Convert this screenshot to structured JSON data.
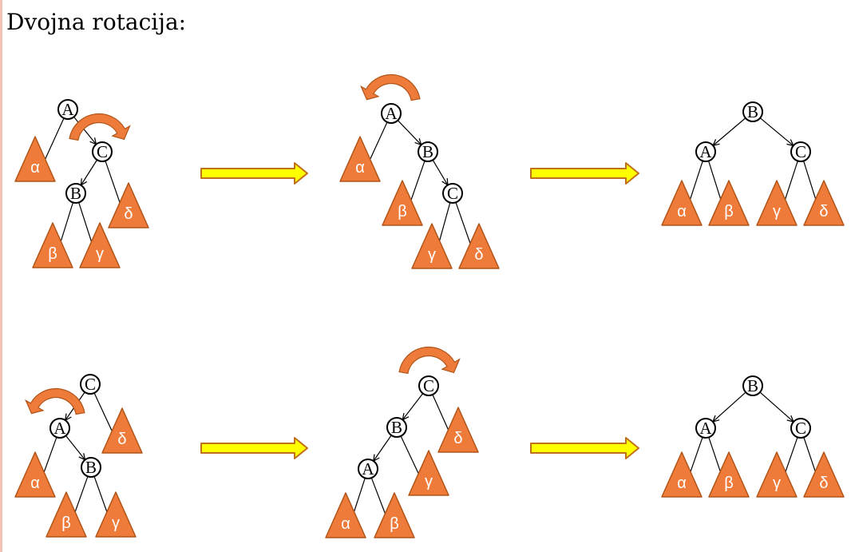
{
  "title": "Dvojna rotacija:",
  "colors": {
    "subtree_fill": "#ee7b3a",
    "subtree_stroke": "#b05418",
    "rotation_arrow": "#ee7b3a",
    "step_arrow_fill": "#ffff00",
    "step_arrow_stroke": "#c0701c"
  },
  "rows": [
    {
      "diagrams": [
        {
          "nodes": [
            {
              "id": "A",
              "label": "A"
            },
            {
              "id": "C",
              "label": "C"
            },
            {
              "id": "B",
              "label": "B"
            }
          ],
          "subtrees": [
            "α",
            "δ",
            "β",
            "γ"
          ],
          "rotation": {
            "around": "C",
            "direction": "clockwise"
          }
        },
        {
          "nodes": [
            {
              "id": "A",
              "label": "A"
            },
            {
              "id": "B",
              "label": "B"
            },
            {
              "id": "C",
              "label": "C"
            }
          ],
          "subtrees": [
            "α",
            "β",
            "γ",
            "δ"
          ],
          "rotation": {
            "around": "A",
            "direction": "counterclockwise"
          }
        },
        {
          "nodes": [
            {
              "id": "B",
              "label": "B"
            },
            {
              "id": "A",
              "label": "A"
            },
            {
              "id": "C",
              "label": "C"
            }
          ],
          "subtrees": [
            "α",
            "β",
            "γ",
            "δ"
          ],
          "rotation": null
        }
      ]
    },
    {
      "diagrams": [
        {
          "nodes": [
            {
              "id": "C",
              "label": "C"
            },
            {
              "id": "A",
              "label": "A"
            },
            {
              "id": "B",
              "label": "B"
            }
          ],
          "subtrees": [
            "δ",
            "α",
            "β",
            "γ"
          ],
          "rotation": {
            "around": "A",
            "direction": "counterclockwise"
          }
        },
        {
          "nodes": [
            {
              "id": "C",
              "label": "C"
            },
            {
              "id": "B",
              "label": "B"
            },
            {
              "id": "A",
              "label": "A"
            }
          ],
          "subtrees": [
            "δ",
            "γ",
            "α",
            "β"
          ],
          "rotation": {
            "around": "C",
            "direction": "clockwise"
          }
        },
        {
          "nodes": [
            {
              "id": "B",
              "label": "B"
            },
            {
              "id": "A",
              "label": "A"
            },
            {
              "id": "C",
              "label": "C"
            }
          ],
          "subtrees": [
            "α",
            "β",
            "γ",
            "δ"
          ],
          "rotation": null
        }
      ]
    }
  ]
}
